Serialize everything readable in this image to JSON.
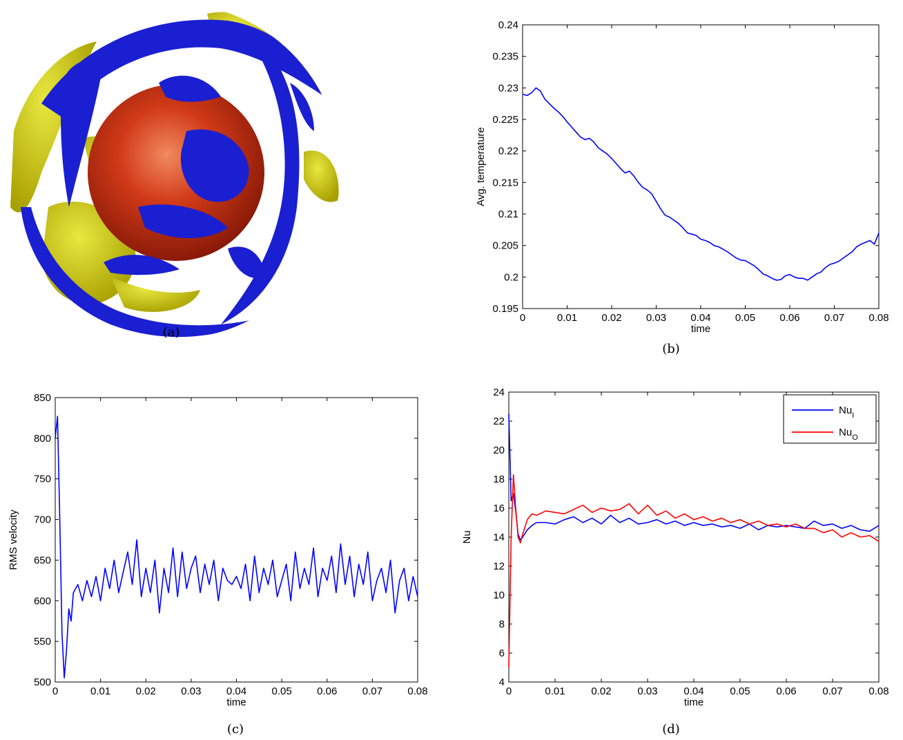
{
  "panels": {
    "a": {
      "caption": "(a)"
    },
    "b": {
      "caption": "(b)"
    },
    "c": {
      "caption": "(c)"
    },
    "d": {
      "caption": "(d)"
    }
  },
  "sphere_colors": {
    "blue": "#1a1fd1",
    "yellow": "#c8c800",
    "red": "#cc2a10"
  },
  "chart_data": [
    {
      "panel": "b",
      "type": "line",
      "xlabel": "time",
      "ylabel": "Avg. temperature",
      "xlim": [
        0,
        0.08
      ],
      "ylim": [
        0.195,
        0.24
      ],
      "xticks": [
        "0",
        "0.01",
        "0.02",
        "0.03",
        "0.04",
        "0.05",
        "0.06",
        "0.07",
        "0.08"
      ],
      "yticks": [
        "0.195",
        "0.2",
        "0.205",
        "0.21",
        "0.215",
        "0.22",
        "0.225",
        "0.23",
        "0.235",
        "0.24"
      ],
      "grid": false,
      "series": [
        {
          "color": "#0000ff",
          "x": [
            0,
            0.001,
            0.002,
            0.003,
            0.004,
            0.005,
            0.006,
            0.007,
            0.008,
            0.009,
            0.01,
            0.011,
            0.012,
            0.013,
            0.014,
            0.015,
            0.016,
            0.017,
            0.018,
            0.019,
            0.02,
            0.021,
            0.022,
            0.023,
            0.024,
            0.025,
            0.026,
            0.027,
            0.028,
            0.029,
            0.03,
            0.031,
            0.032,
            0.033,
            0.034,
            0.035,
            0.036,
            0.037,
            0.038,
            0.039,
            0.04,
            0.041,
            0.042,
            0.043,
            0.044,
            0.045,
            0.046,
            0.047,
            0.048,
            0.049,
            0.05,
            0.051,
            0.052,
            0.053,
            0.054,
            0.055,
            0.056,
            0.057,
            0.058,
            0.059,
            0.06,
            0.061,
            0.062,
            0.063,
            0.064,
            0.065,
            0.066,
            0.067,
            0.068,
            0.069,
            0.07,
            0.071,
            0.072,
            0.073,
            0.074,
            0.075,
            0.076,
            0.077,
            0.078,
            0.079,
            0.08
          ],
          "y": [
            0.229,
            0.2288,
            0.2292,
            0.23,
            0.2295,
            0.2282,
            0.2275,
            0.2268,
            0.2262,
            0.2255,
            0.2246,
            0.2238,
            0.223,
            0.2222,
            0.2218,
            0.222,
            0.2214,
            0.2205,
            0.22,
            0.2195,
            0.2188,
            0.218,
            0.2172,
            0.2165,
            0.2168,
            0.216,
            0.215,
            0.2142,
            0.2138,
            0.2132,
            0.212,
            0.2108,
            0.2098,
            0.2095,
            0.209,
            0.2085,
            0.2078,
            0.207,
            0.2068,
            0.2066,
            0.206,
            0.2058,
            0.2055,
            0.205,
            0.2048,
            0.2044,
            0.204,
            0.2035,
            0.203,
            0.2027,
            0.2026,
            0.2022,
            0.2018,
            0.2012,
            0.2005,
            0.2002,
            0.1998,
            0.1995,
            0.1996,
            0.2002,
            0.2004,
            0.2,
            0.1998,
            0.1998,
            0.1995,
            0.2,
            0.2005,
            0.2008,
            0.2015,
            0.202,
            0.2022,
            0.2025,
            0.203,
            0.2035,
            0.204,
            0.2048,
            0.2052,
            0.2055,
            0.2058,
            0.2052,
            0.207
          ]
        }
      ]
    },
    {
      "panel": "c",
      "type": "line",
      "xlabel": "time",
      "ylabel": "RMS velocity",
      "xlim": [
        0,
        0.08
      ],
      "ylim": [
        500,
        850
      ],
      "xticks": [
        "0",
        "0.01",
        "0.02",
        "0.03",
        "0.04",
        "0.05",
        "0.06",
        "0.07",
        "0.08"
      ],
      "yticks": [
        "500",
        "550",
        "600",
        "650",
        "700",
        "750",
        "800",
        "850"
      ],
      "grid": false,
      "series": [
        {
          "color": "#0000ff",
          "x": [
            0,
            0.0005,
            0.001,
            0.0015,
            0.002,
            0.0025,
            0.003,
            0.0035,
            0.004,
            0.005,
            0.006,
            0.007,
            0.008,
            0.009,
            0.01,
            0.011,
            0.012,
            0.013,
            0.014,
            0.015,
            0.016,
            0.017,
            0.018,
            0.019,
            0.02,
            0.021,
            0.022,
            0.023,
            0.024,
            0.025,
            0.026,
            0.027,
            0.028,
            0.029,
            0.03,
            0.031,
            0.032,
            0.033,
            0.034,
            0.035,
            0.036,
            0.037,
            0.038,
            0.039,
            0.04,
            0.041,
            0.042,
            0.043,
            0.044,
            0.045,
            0.046,
            0.047,
            0.048,
            0.049,
            0.05,
            0.051,
            0.052,
            0.053,
            0.054,
            0.055,
            0.056,
            0.057,
            0.058,
            0.059,
            0.06,
            0.061,
            0.062,
            0.063,
            0.064,
            0.065,
            0.066,
            0.067,
            0.068,
            0.069,
            0.07,
            0.071,
            0.072,
            0.073,
            0.074,
            0.075,
            0.076,
            0.077,
            0.078,
            0.079,
            0.08
          ],
          "y": [
            800,
            827,
            700,
            560,
            505,
            540,
            590,
            575,
            610,
            620,
            600,
            625,
            605,
            630,
            600,
            640,
            615,
            650,
            610,
            635,
            660,
            620,
            675,
            605,
            640,
            610,
            650,
            585,
            640,
            610,
            665,
            605,
            660,
            615,
            640,
            655,
            610,
            645,
            620,
            650,
            600,
            640,
            625,
            620,
            630,
            615,
            645,
            600,
            655,
            610,
            640,
            620,
            650,
            605,
            625,
            645,
            600,
            660,
            615,
            640,
            620,
            665,
            605,
            640,
            625,
            655,
            610,
            670,
            620,
            655,
            605,
            645,
            620,
            660,
            600,
            625,
            640,
            610,
            650,
            585,
            625,
            640,
            600,
            630,
            605
          ]
        }
      ]
    },
    {
      "panel": "d",
      "type": "line",
      "xlabel": "time",
      "ylabel": "Nu",
      "xlim": [
        0,
        0.08
      ],
      "ylim": [
        4,
        24
      ],
      "xticks": [
        "0",
        "0.01",
        "0.02",
        "0.03",
        "0.04",
        "0.05",
        "0.06",
        "0.07",
        "0.08"
      ],
      "yticks": [
        "4",
        "6",
        "8",
        "10",
        "12",
        "14",
        "16",
        "18",
        "20",
        "22",
        "24"
      ],
      "grid": false,
      "legend": {
        "placement": "top-right"
      },
      "series": [
        {
          "name": "Nu",
          "sub": "I",
          "color": "#0000ff",
          "x": [
            0,
            0.0005,
            0.001,
            0.0015,
            0.002,
            0.0025,
            0.003,
            0.004,
            0.005,
            0.006,
            0.008,
            0.01,
            0.012,
            0.014,
            0.016,
            0.018,
            0.02,
            0.022,
            0.024,
            0.026,
            0.028,
            0.03,
            0.032,
            0.034,
            0.036,
            0.038,
            0.04,
            0.042,
            0.044,
            0.046,
            0.048,
            0.05,
            0.052,
            0.054,
            0.056,
            0.058,
            0.06,
            0.062,
            0.064,
            0.066,
            0.068,
            0.07,
            0.072,
            0.074,
            0.076,
            0.078,
            0.08
          ],
          "y": [
            22.5,
            16.5,
            17.0,
            15.8,
            14.2,
            13.8,
            14.0,
            14.5,
            14.8,
            15.0,
            15.0,
            14.9,
            15.2,
            15.4,
            15.0,
            15.3,
            14.9,
            15.5,
            15.0,
            15.3,
            14.9,
            15.0,
            15.2,
            14.9,
            15.1,
            14.8,
            15.0,
            14.8,
            14.9,
            14.7,
            14.8,
            14.6,
            14.9,
            14.5,
            14.8,
            14.7,
            14.8,
            14.7,
            14.6,
            15.1,
            14.8,
            14.9,
            14.6,
            14.8,
            14.5,
            14.4,
            14.8
          ]
        },
        {
          "name": "Nu",
          "sub": "O",
          "color": "#ff0000",
          "x": [
            0,
            0.0005,
            0.001,
            0.0015,
            0.002,
            0.0025,
            0.003,
            0.004,
            0.005,
            0.006,
            0.008,
            0.01,
            0.012,
            0.014,
            0.016,
            0.018,
            0.02,
            0.022,
            0.024,
            0.026,
            0.028,
            0.03,
            0.032,
            0.034,
            0.036,
            0.038,
            0.04,
            0.042,
            0.044,
            0.046,
            0.048,
            0.05,
            0.052,
            0.054,
            0.056,
            0.058,
            0.06,
            0.062,
            0.064,
            0.066,
            0.068,
            0.07,
            0.072,
            0.074,
            0.076,
            0.078,
            0.08
          ],
          "y": [
            5.0,
            14.0,
            18.3,
            16.0,
            14.0,
            13.6,
            14.2,
            15.2,
            15.6,
            15.5,
            15.8,
            15.7,
            15.6,
            15.9,
            16.2,
            15.7,
            16.0,
            15.8,
            15.9,
            16.3,
            15.6,
            16.2,
            15.5,
            15.8,
            15.3,
            15.6,
            15.2,
            15.4,
            15.1,
            15.3,
            15.0,
            15.2,
            14.9,
            15.1,
            14.8,
            14.9,
            14.7,
            14.9,
            14.6,
            14.6,
            14.3,
            14.5,
            14.0,
            14.3,
            14.0,
            14.1,
            13.7
          ]
        }
      ]
    }
  ]
}
